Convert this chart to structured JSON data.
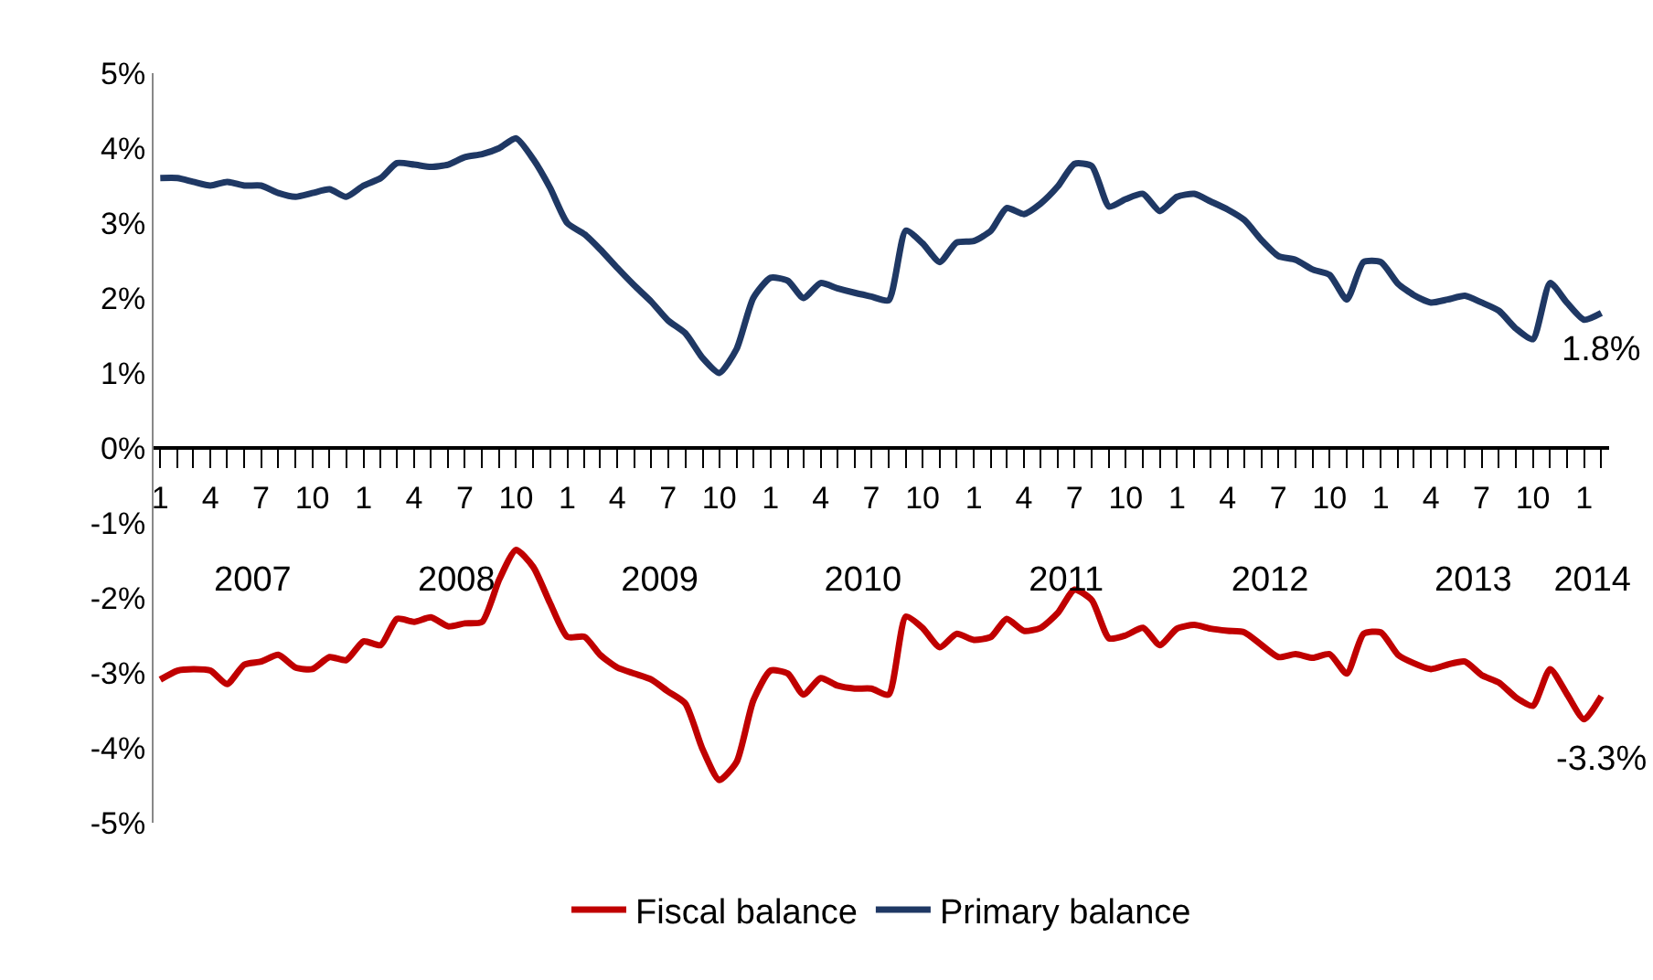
{
  "chart_data": {
    "type": "line",
    "x": [
      "2007-01",
      "2007-02",
      "2007-03",
      "2007-04",
      "2007-05",
      "2007-06",
      "2007-07",
      "2007-08",
      "2007-09",
      "2007-10",
      "2007-11",
      "2007-12",
      "2008-01",
      "2008-02",
      "2008-03",
      "2008-04",
      "2008-05",
      "2008-06",
      "2008-07",
      "2008-08",
      "2008-09",
      "2008-10",
      "2008-11",
      "2008-12",
      "2009-01",
      "2009-02",
      "2009-03",
      "2009-04",
      "2009-05",
      "2009-06",
      "2009-07",
      "2009-08",
      "2009-09",
      "2009-10",
      "2009-11",
      "2009-12",
      "2010-01",
      "2010-02",
      "2010-03",
      "2010-04",
      "2010-05",
      "2010-06",
      "2010-07",
      "2010-08",
      "2010-09",
      "2010-10",
      "2010-11",
      "2010-12",
      "2011-01",
      "2011-02",
      "2011-03",
      "2011-04",
      "2011-05",
      "2011-06",
      "2011-07",
      "2011-08",
      "2011-09",
      "2011-10",
      "2011-11",
      "2011-12",
      "2012-01",
      "2012-02",
      "2012-03",
      "2012-04",
      "2012-05",
      "2012-06",
      "2012-07",
      "2012-08",
      "2012-09",
      "2012-10",
      "2012-11",
      "2012-12",
      "2013-01",
      "2013-02",
      "2013-03",
      "2013-04",
      "2013-05",
      "2013-06",
      "2013-07",
      "2013-08",
      "2013-09",
      "2013-10",
      "2013-11",
      "2013-12",
      "2014-01",
      "2014-02"
    ],
    "series": [
      {
        "name": "Fiscal balance",
        "color": "#c00000",
        "values": [
          -3.09,
          -2.97,
          -2.95,
          -2.97,
          -3.15,
          -2.89,
          -2.85,
          -2.76,
          -2.93,
          -2.95,
          -2.79,
          -2.83,
          -2.58,
          -2.63,
          -2.28,
          -2.32,
          -2.26,
          -2.38,
          -2.34,
          -2.32,
          -1.75,
          -1.36,
          -1.59,
          -2.07,
          -2.52,
          -2.52,
          -2.76,
          -2.93,
          -3.01,
          -3.09,
          -3.25,
          -3.41,
          -4.02,
          -4.43,
          -4.19,
          -3.37,
          -2.97,
          -3.01,
          -3.29,
          -3.07,
          -3.17,
          -3.21,
          -3.21,
          -3.29,
          -2.25,
          -2.4,
          -2.66,
          -2.48,
          -2.56,
          -2.52,
          -2.28,
          -2.44,
          -2.4,
          -2.2,
          -1.89,
          -2.03,
          -2.54,
          -2.5,
          -2.4,
          -2.63,
          -2.41,
          -2.36,
          -2.41,
          -2.44,
          -2.46,
          -2.63,
          -2.79,
          -2.75,
          -2.8,
          -2.75,
          -3.01,
          -2.48,
          -2.46,
          -2.76,
          -2.87,
          -2.95,
          -2.89,
          -2.85,
          -3.03,
          -3.13,
          -3.33,
          -3.44,
          -2.95,
          -3.28,
          -3.62,
          -3.31
        ]
      },
      {
        "name": "Primary balance",
        "color": "#1f3864",
        "values": [
          3.6,
          3.6,
          3.55,
          3.5,
          3.55,
          3.5,
          3.5,
          3.4,
          3.35,
          3.4,
          3.45,
          3.35,
          3.5,
          3.6,
          3.8,
          3.78,
          3.75,
          3.78,
          3.88,
          3.92,
          4.0,
          4.13,
          3.85,
          3.47,
          3.0,
          2.85,
          2.65,
          2.4,
          2.17,
          1.95,
          1.7,
          1.53,
          1.2,
          1.0,
          1.32,
          2.0,
          2.27,
          2.23,
          2.0,
          2.2,
          2.13,
          2.07,
          2.02,
          1.97,
          2.9,
          2.73,
          2.48,
          2.74,
          2.76,
          2.9,
          3.2,
          3.12,
          3.26,
          3.49,
          3.79,
          3.76,
          3.22,
          3.32,
          3.39,
          3.16,
          3.35,
          3.39,
          3.29,
          3.18,
          3.04,
          2.77,
          2.56,
          2.51,
          2.38,
          2.31,
          1.98,
          2.48,
          2.48,
          2.19,
          2.04,
          1.94,
          1.98,
          2.03,
          1.94,
          1.83,
          1.59,
          1.45,
          2.2,
          1.94,
          1.71,
          1.8
        ]
      }
    ],
    "annotations": [
      {
        "text": "1.8%",
        "x": "2014-02",
        "y": 1.8
      },
      {
        "text": "-3.3%",
        "x": "2014-02",
        "y": -3.31
      }
    ],
    "ylim": [
      -5,
      5
    ],
    "yticks": [
      {
        "value": 5,
        "label": "5%"
      },
      {
        "value": 4,
        "label": "4%"
      },
      {
        "value": 3,
        "label": "3%"
      },
      {
        "value": 2,
        "label": "2%"
      },
      {
        "value": 1,
        "label": "1%"
      },
      {
        "value": 0,
        "label": "0%"
      },
      {
        "value": -1,
        "label": "-1%"
      },
      {
        "value": -2,
        "label": "-2%"
      },
      {
        "value": -3,
        "label": "-3%"
      },
      {
        "value": -4,
        "label": "-4%"
      },
      {
        "value": -5,
        "label": "-5%"
      }
    ],
    "xlim": [
      "2006-12-20",
      "2014-02-15"
    ],
    "xticks": [
      {
        "value": "2007-01",
        "label": "1"
      },
      {
        "value": "2007-02",
        "label": null
      },
      {
        "value": "2007-03",
        "label": null
      },
      {
        "value": "2007-04",
        "label": "4"
      },
      {
        "value": "2007-05",
        "label": null
      },
      {
        "value": "2007-06",
        "label": null
      },
      {
        "value": "2007-07",
        "label": "7"
      },
      {
        "value": "2007-08",
        "label": null
      },
      {
        "value": "2007-09",
        "label": null
      },
      {
        "value": "2007-10",
        "label": "10"
      },
      {
        "value": "2007-11",
        "label": null
      },
      {
        "value": "2007-12",
        "label": null
      },
      {
        "value": "2008-01",
        "label": "1"
      },
      {
        "value": "2008-02",
        "label": null
      },
      {
        "value": "2008-03",
        "label": null
      },
      {
        "value": "2008-04",
        "label": "4"
      },
      {
        "value": "2008-05",
        "label": null
      },
      {
        "value": "2008-06",
        "label": null
      },
      {
        "value": "2008-07",
        "label": "7"
      },
      {
        "value": "2008-08",
        "label": null
      },
      {
        "value": "2008-09",
        "label": null
      },
      {
        "value": "2008-10",
        "label": "10"
      },
      {
        "value": "2008-11",
        "label": null
      },
      {
        "value": "2008-12",
        "label": null
      },
      {
        "value": "2009-01",
        "label": "1"
      },
      {
        "value": "2009-02",
        "label": null
      },
      {
        "value": "2009-03",
        "label": null
      },
      {
        "value": "2009-04",
        "label": "4"
      },
      {
        "value": "2009-05",
        "label": null
      },
      {
        "value": "2009-06",
        "label": null
      },
      {
        "value": "2009-07",
        "label": "7"
      },
      {
        "value": "2009-08",
        "label": null
      },
      {
        "value": "2009-09",
        "label": null
      },
      {
        "value": "2009-10",
        "label": "10"
      },
      {
        "value": "2009-11",
        "label": null
      },
      {
        "value": "2009-12",
        "label": null
      },
      {
        "value": "2010-01",
        "label": "1"
      },
      {
        "value": "2010-02",
        "label": null
      },
      {
        "value": "2010-03",
        "label": null
      },
      {
        "value": "2010-04",
        "label": "4"
      },
      {
        "value": "2010-05",
        "label": null
      },
      {
        "value": "2010-06",
        "label": null
      },
      {
        "value": "2010-07",
        "label": "7"
      },
      {
        "value": "2010-08",
        "label": null
      },
      {
        "value": "2010-09",
        "label": null
      },
      {
        "value": "2010-10",
        "label": "10"
      },
      {
        "value": "2010-11",
        "label": null
      },
      {
        "value": "2010-12",
        "label": null
      },
      {
        "value": "2011-01",
        "label": "1"
      },
      {
        "value": "2011-02",
        "label": null
      },
      {
        "value": "2011-03",
        "label": null
      },
      {
        "value": "2011-04",
        "label": "4"
      },
      {
        "value": "2011-05",
        "label": null
      },
      {
        "value": "2011-06",
        "label": null
      },
      {
        "value": "2011-07",
        "label": "7"
      },
      {
        "value": "2011-08",
        "label": null
      },
      {
        "value": "2011-09",
        "label": null
      },
      {
        "value": "2011-10",
        "label": "10"
      },
      {
        "value": "2011-11",
        "label": null
      },
      {
        "value": "2011-12",
        "label": null
      },
      {
        "value": "2012-01",
        "label": "1"
      },
      {
        "value": "2012-02",
        "label": null
      },
      {
        "value": "2012-03",
        "label": null
      },
      {
        "value": "2012-04",
        "label": "4"
      },
      {
        "value": "2012-05",
        "label": null
      },
      {
        "value": "2012-06",
        "label": null
      },
      {
        "value": "2012-07",
        "label": "7"
      },
      {
        "value": "2012-08",
        "label": null
      },
      {
        "value": "2012-09",
        "label": null
      },
      {
        "value": "2012-10",
        "label": "10"
      },
      {
        "value": "2012-11",
        "label": null
      },
      {
        "value": "2012-12",
        "label": null
      },
      {
        "value": "2013-01",
        "label": "1"
      },
      {
        "value": "2013-02",
        "label": null
      },
      {
        "value": "2013-03",
        "label": null
      },
      {
        "value": "2013-04",
        "label": "4"
      },
      {
        "value": "2013-05",
        "label": null
      },
      {
        "value": "2013-06",
        "label": null
      },
      {
        "value": "2013-07",
        "label": "7"
      },
      {
        "value": "2013-08",
        "label": null
      },
      {
        "value": "2013-09",
        "label": null
      },
      {
        "value": "2013-10",
        "label": "10"
      },
      {
        "value": "2013-11",
        "label": null
      },
      {
        "value": "2013-12",
        "label": null
      },
      {
        "value": "2014-01",
        "label": "1"
      },
      {
        "value": "2014-02",
        "label": null
      }
    ],
    "x2lim": [
      "2006-12-20",
      "2014-02-15"
    ],
    "x2ticks": [
      {
        "value": "2007-06-16",
        "label": "2007"
      },
      {
        "value": "2008-06-16",
        "label": "2008"
      },
      {
        "value": "2009-06-16",
        "label": "2009"
      },
      {
        "value": "2010-06-16",
        "label": "2010"
      },
      {
        "value": "2011-06-16",
        "label": "2011"
      },
      {
        "value": "2012-06-16",
        "label": "2012"
      },
      {
        "value": "2013-06-16",
        "label": "2013"
      },
      {
        "value": "2014-01-16",
        "label": "2014"
      }
    ],
    "legend": "bottom",
    "marker": "none",
    "line_style": "solid"
  }
}
